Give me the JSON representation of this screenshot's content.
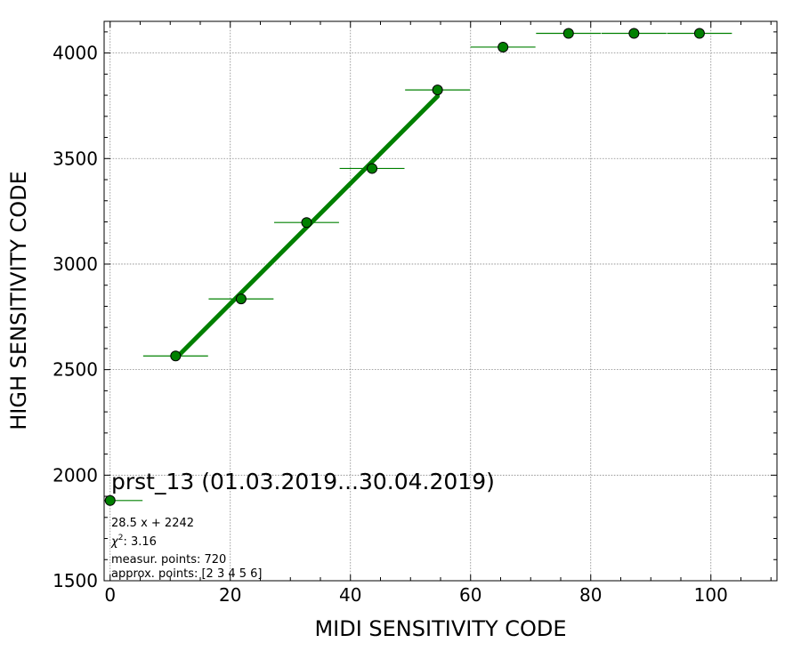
{
  "chart_data": {
    "type": "scatter",
    "title": "prst_13 (01.03.2019...30.04.2019)",
    "xlabel": "MIDI SENSITIVITY CODE",
    "ylabel": "HIGH SENSITIVITY CODE",
    "xlim": [
      -1,
      111
    ],
    "ylim": [
      1500,
      4150
    ],
    "x_ticks": [
      0,
      20,
      40,
      60,
      80,
      100
    ],
    "y_ticks": [
      1500,
      2000,
      2500,
      3000,
      3500,
      4000
    ],
    "grid": true,
    "colors": {
      "marker": "#008000",
      "fit_line": "#008000",
      "marker_edge": "#000000",
      "grid": "#888888"
    },
    "series": [
      {
        "points": [
          {
            "x": 0,
            "y": 1880,
            "xerr": 5.4
          },
          {
            "x": 10.9,
            "y": 2565,
            "xerr": 5.4
          },
          {
            "x": 21.8,
            "y": 2835,
            "xerr": 5.4
          },
          {
            "x": 32.7,
            "y": 3197,
            "xerr": 5.4
          },
          {
            "x": 43.6,
            "y": 3453,
            "xerr": 5.4
          },
          {
            "x": 54.5,
            "y": 3825,
            "xerr": 5.4
          },
          {
            "x": 65.4,
            "y": 4028,
            "xerr": 5.4
          },
          {
            "x": 76.3,
            "y": 4093,
            "xerr": 5.4
          },
          {
            "x": 87.2,
            "y": 4093,
            "xerr": 5.4
          },
          {
            "x": 98.1,
            "y": 4093,
            "xerr": 5.4
          }
        ]
      }
    ],
    "fit": {
      "slope": 28.5,
      "intercept": 2242,
      "x_range": [
        10.9,
        54.5
      ]
    },
    "annotations": {
      "equation": "28.5 x + 2242",
      "chi2_label": "χ",
      "chi2_sup": "2",
      "chi2_value": ": 3.16",
      "measur_points": "measur. points: 720",
      "approx_points": "approx. points: [2 3 4 5 6]"
    }
  }
}
